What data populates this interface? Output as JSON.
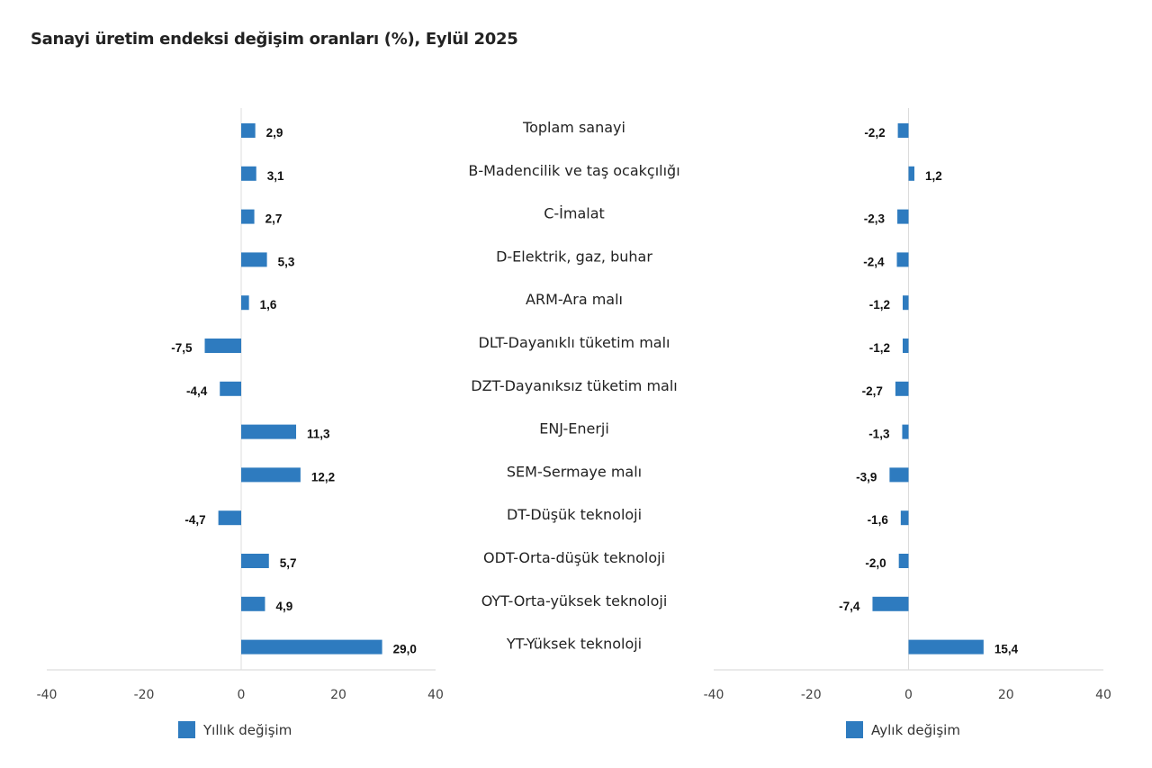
{
  "chart_data": {
    "type": "bar",
    "orientation": "horizontal",
    "title": "Sanayi üretim endeksi değişim oranları (%), Eylül 2025",
    "categories": [
      "Toplam sanayi",
      "B-Madencilik ve taş ocakçılığı",
      "C-İmalat",
      "D-Elektrik, gaz, buhar",
      "ARM-Ara malı",
      "DLT-Dayanıklı tüketim malı",
      "DZT-Dayanıksız tüketim malı",
      "ENJ-Enerji",
      "SEM-Sermaye malı",
      "DT-Düşük teknoloji",
      "ODT-Orta-düşük teknoloji",
      "OYT-Orta-yüksek teknoloji",
      "YT-Yüksek teknoloji"
    ],
    "panels": [
      {
        "name": "Yıllık değişim",
        "values": [
          2.9,
          3.1,
          2.7,
          5.3,
          1.6,
          -7.5,
          -4.4,
          11.3,
          12.2,
          -4.7,
          5.7,
          4.9,
          29.0
        ],
        "value_labels": [
          "2,9",
          "3,1",
          "2,7",
          "5,3",
          "1,6",
          "-7,5",
          "-4,4",
          "11,3",
          "12,2",
          "-4,7",
          "5,7",
          "4,9",
          "29,0"
        ],
        "xlim": [
          -40,
          40
        ],
        "xticks": [
          "-40",
          "-20",
          "0",
          "20",
          "40"
        ],
        "color": "#2e7bbf",
        "legend": "Yıllık değişim"
      },
      {
        "name": "Aylık değişim",
        "values": [
          -2.2,
          1.2,
          -2.3,
          -2.4,
          -1.2,
          -1.2,
          -2.7,
          -1.3,
          -3.9,
          -1.6,
          -2.0,
          -7.4,
          15.4
        ],
        "value_labels": [
          "-2,2",
          "1,2",
          "-2,3",
          "-2,4",
          "-1,2",
          "-1,2",
          "-2,7",
          "-1,3",
          "-3,9",
          "-1,6",
          "-2,0",
          "-7,4",
          "15,4"
        ],
        "xlim": [
          -40,
          40
        ],
        "xticks": [
          "-40",
          "-20",
          "0",
          "20",
          "40"
        ],
        "color": "#2e7bbf",
        "legend": "Aylık değişim"
      }
    ],
    "xlabel": "",
    "ylabel": "",
    "grid": false,
    "legend_position": "bottom"
  }
}
